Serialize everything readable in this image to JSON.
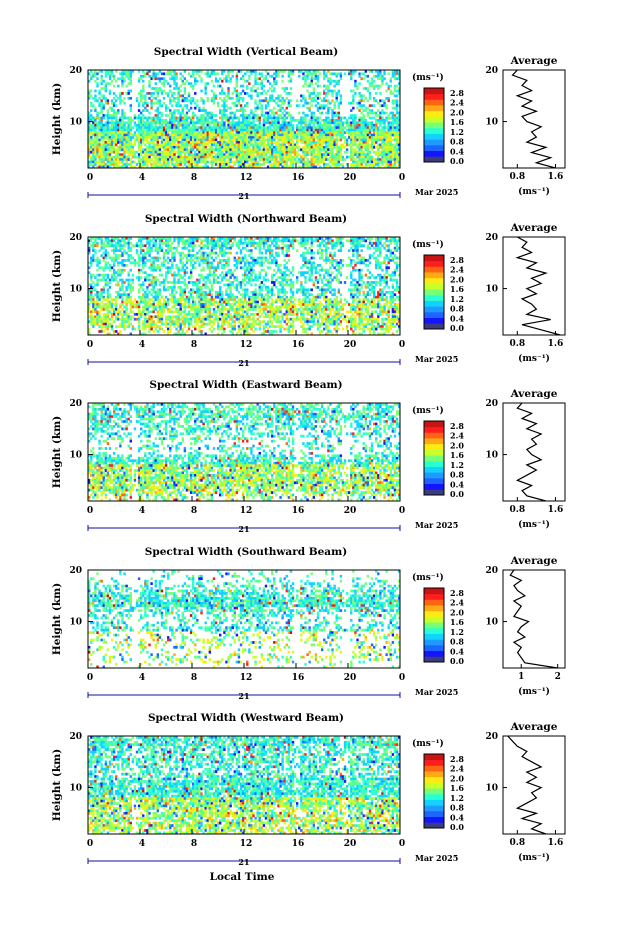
{
  "chart_data": {
    "type": "heatmap",
    "date_label": "Mar 2025",
    "day_label": "21",
    "xlabel": "Local Time",
    "ylabel": "Height (km)",
    "x_ticks": [
      "0",
      "4",
      "8",
      "12",
      "16",
      "20",
      "0"
    ],
    "y_ticks": [
      "20",
      "10"
    ],
    "xlim": [
      0,
      24
    ],
    "ylim": [
      1,
      20
    ],
    "colorbar": {
      "unit_label": "(ms⁻¹)",
      "ticks": [
        "2.8",
        "2.4",
        "2.0",
        "1.6",
        "1.2",
        "0.8",
        "0.4",
        "0.0"
      ],
      "range": [
        0,
        3.0
      ],
      "colors": [
        "#3b3b80",
        "#1414ff",
        "#1e64ff",
        "#1e9bff",
        "#14d2ff",
        "#28ffd2",
        "#78ff78",
        "#c8ff28",
        "#ffeb14",
        "#ffaa14",
        "#ff6414",
        "#ff1e1e",
        "#c81414"
      ]
    },
    "panels": [
      {
        "title": "Spectral Width (Vertical Beam)",
        "avg_title": "Average",
        "avg_xticks": [
          "0.8",
          "1.6"
        ],
        "avg_xlim": [
          0.5,
          1.8
        ],
        "avg_xlabel": "(ms⁻¹)",
        "avg_heights": [
          1,
          2,
          3,
          4,
          5,
          6,
          7,
          8,
          9,
          10,
          11,
          12,
          13,
          14,
          15,
          16,
          17,
          18,
          19,
          20
        ],
        "avg_values": [
          1.6,
          1.2,
          1.5,
          1.1,
          1.4,
          1.0,
          1.2,
          1.1,
          1.3,
          1.0,
          0.9,
          1.2,
          0.9,
          1.1,
          0.8,
          1.1,
          0.9,
          1.0,
          0.7,
          0.8
        ]
      },
      {
        "title": "Spectral Width (Northward Beam)",
        "avg_title": "Average",
        "avg_xticks": [
          "0.8",
          "1.6"
        ],
        "avg_xlim": [
          0.5,
          1.8
        ],
        "avg_xlabel": "(ms⁻¹)",
        "avg_heights": [
          1,
          2,
          3,
          4,
          5,
          6,
          7,
          8,
          9,
          10,
          11,
          12,
          13,
          14,
          15,
          16,
          17,
          18,
          19,
          20
        ],
        "avg_values": [
          1.7,
          1.3,
          0.9,
          1.5,
          1.0,
          1.2,
          1.1,
          0.9,
          1.2,
          1.0,
          1.3,
          1.1,
          1.4,
          1.0,
          1.2,
          0.8,
          1.1,
          0.9,
          1.0,
          0.8
        ]
      },
      {
        "title": "Spectral Width (Eastward Beam)",
        "avg_title": "Average",
        "avg_xticks": [
          "0.8",
          "1.6"
        ],
        "avg_xlim": [
          0.5,
          1.8
        ],
        "avg_xlabel": "(ms⁻¹)",
        "avg_heights": [
          1,
          2,
          3,
          4,
          5,
          6,
          7,
          8,
          9,
          10,
          11,
          12,
          13,
          14,
          15,
          16,
          17,
          18,
          19,
          20
        ],
        "avg_values": [
          1.4,
          1.0,
          0.9,
          1.1,
          0.8,
          1.0,
          1.2,
          1.0,
          1.3,
          1.1,
          1.0,
          1.2,
          1.1,
          1.3,
          1.0,
          1.2,
          0.9,
          1.1,
          0.8,
          0.9
        ]
      },
      {
        "title": "Spectral Width (Southward Beam)",
        "avg_title": "Average",
        "avg_xticks": [
          "1",
          "2"
        ],
        "avg_xlim": [
          0.5,
          2.2
        ],
        "avg_xlabel": "(ms⁻¹)",
        "avg_heights": [
          1,
          2,
          3,
          4,
          5,
          6,
          7,
          8,
          9,
          10,
          11,
          12,
          13,
          14,
          15,
          16,
          17,
          18,
          19,
          20
        ],
        "avg_values": [
          2.0,
          1.1,
          1.0,
          0.9,
          1.0,
          0.8,
          1.1,
          0.9,
          1.0,
          1.2,
          0.8,
          0.9,
          1.0,
          0.8,
          1.1,
          0.9,
          0.8,
          1.0,
          0.7,
          0.8
        ]
      },
      {
        "title": "Spectral Width (Westward Beam)",
        "avg_title": "Average",
        "avg_xticks": [
          "0.8",
          "1.6"
        ],
        "avg_xlim": [
          0.5,
          1.8
        ],
        "avg_xlabel": "(ms⁻¹)",
        "avg_heights": [
          1,
          2,
          3,
          4,
          5,
          6,
          7,
          8,
          9,
          10,
          11,
          12,
          13,
          14,
          15,
          16,
          17,
          18,
          19,
          20
        ],
        "avg_values": [
          1.4,
          1.1,
          1.3,
          0.9,
          1.2,
          0.8,
          1.0,
          1.2,
          1.1,
          1.3,
          1.0,
          1.2,
          1.0,
          1.3,
          1.1,
          0.9,
          1.0,
          0.8,
          0.7,
          0.6
        ]
      }
    ]
  }
}
